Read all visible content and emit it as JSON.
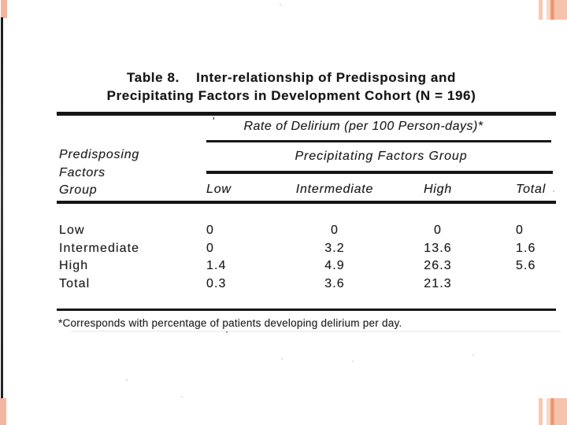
{
  "palette": {
    "ink": "#1c1c1c",
    "paper": "#ffffff",
    "salmon": "#f3b49c",
    "salmon_light": "#f8c8b2",
    "accent_orange": "#e18a5c"
  },
  "scan": {
    "title_line1": "Table 8.    Inter-relationship of Predisposing and",
    "title_line2": "Precipitating Factors in Development Cohort (N = 196)",
    "stray_mark": "'",
    "spanner_top": "Rate of Delirium (per 100 Person-days)*",
    "spanner_sub": "Precipitating Factors Group",
    "stub_head": "Predisposing\nFactors\nGroup",
    "col_headers": [
      "Low",
      "Intermediate",
      "High",
      "Total"
    ],
    "rows": [
      {
        "label": "Low",
        "c1": "0",
        "c2": "0",
        "c3": "0",
        "c4": "0"
      },
      {
        "label": "Intermediate",
        "c1": "0",
        "c2": "3.2",
        "c3": "13.6",
        "c4": "1.6"
      },
      {
        "label": "High",
        "c1": "1.4",
        "c2": "4.9",
        "c3": "26.3",
        "c4": "5.6"
      },
      {
        "label": "Total",
        "c1": "0.3",
        "c2": "3.6",
        "c3": "21.3",
        "c4": ""
      }
    ],
    "footnote": "*Corresponds with percentage of patients developing delirium per day."
  }
}
